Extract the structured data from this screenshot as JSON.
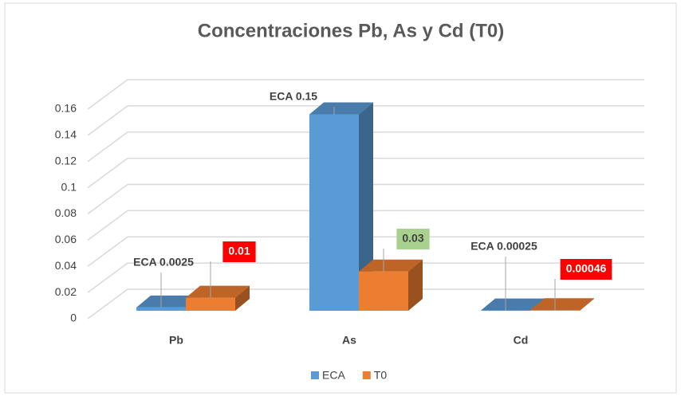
{
  "chart_data": {
    "type": "bar3d",
    "title": "Concentraciones Pb, As y Cd (T0)",
    "categories": [
      "Pb",
      "As",
      "Cd"
    ],
    "series": [
      {
        "name": "ECA",
        "color": "#5b9bd5",
        "values": [
          0.0025,
          0.15,
          0.00025
        ],
        "value_labels": [
          "ECA 0.0025",
          "ECA 0.15",
          "ECA 0.00025"
        ]
      },
      {
        "name": "T0",
        "color": "#ed7d31",
        "values": [
          0.01,
          0.03,
          0.00046
        ],
        "label_backgrounds": [
          "#ff0000",
          "#a9d18e",
          "#ff0000"
        ]
      }
    ],
    "ylim": [
      0,
      0.16
    ],
    "yticks": [
      0,
      0.02,
      0.04,
      0.06,
      0.08,
      0.1,
      0.12,
      0.14,
      0.16
    ],
    "grid": true,
    "legend": "bottom"
  }
}
